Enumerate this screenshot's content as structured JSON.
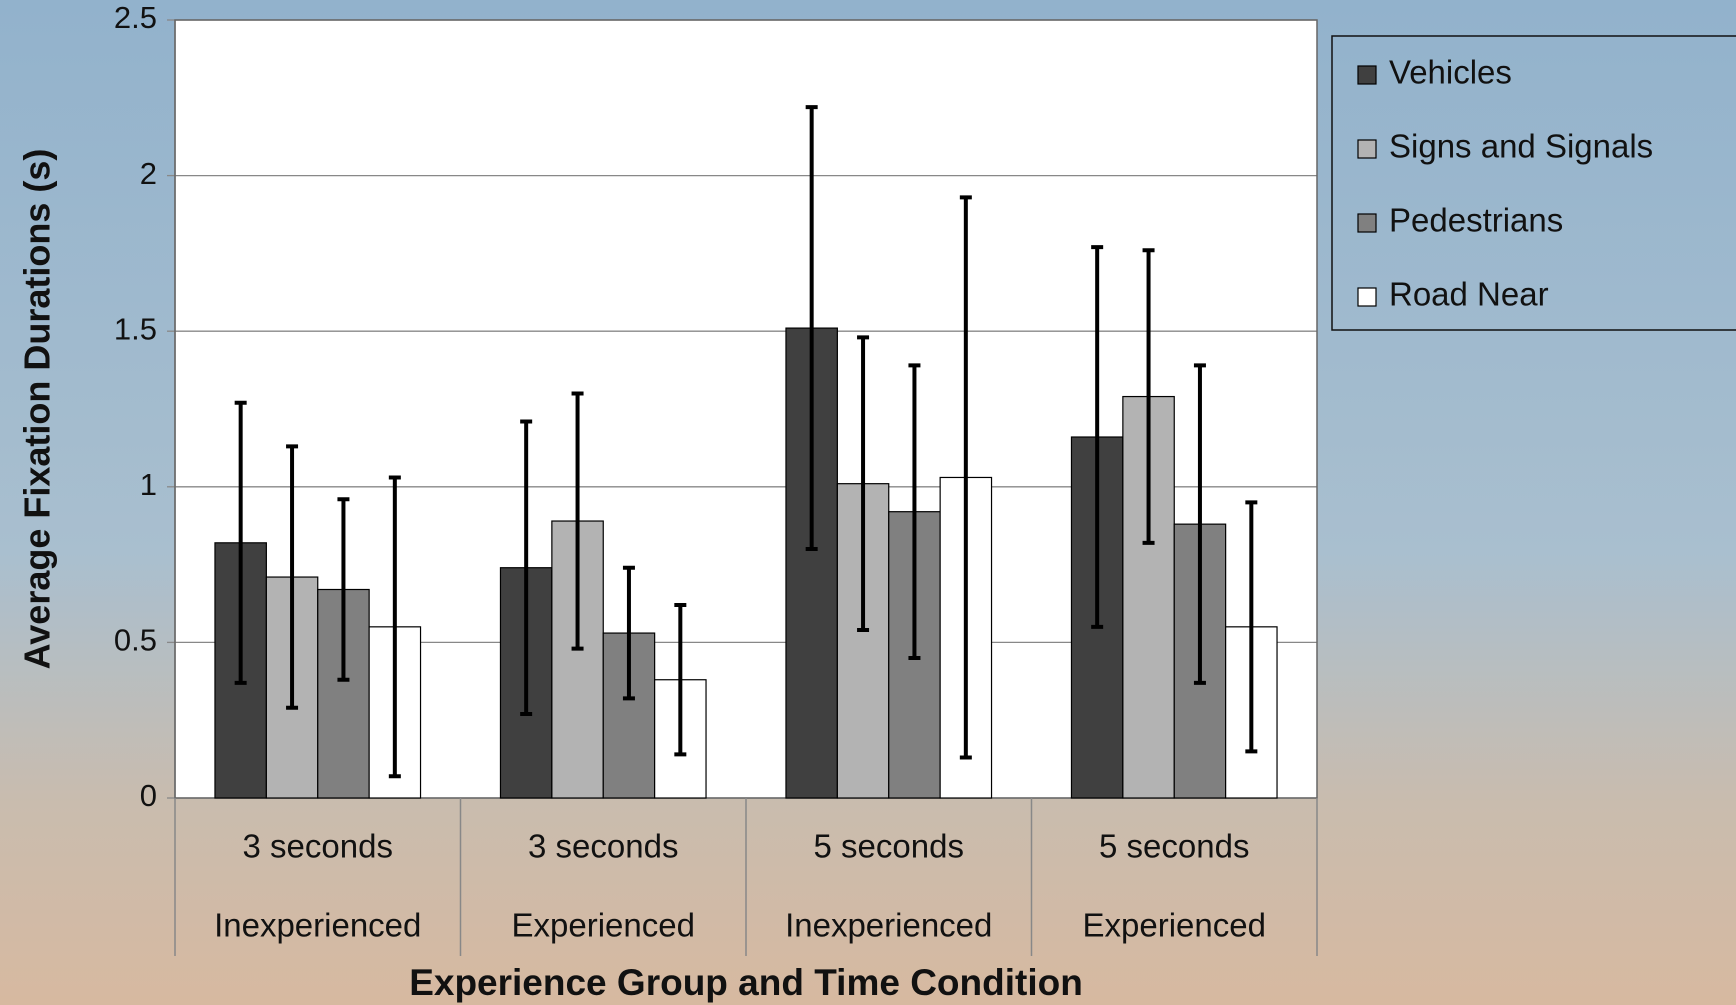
{
  "chart_data": {
    "type": "bar",
    "y_label": "Average Fixation Durations (s)",
    "x_label": "Experience Group and Time Condition",
    "categories": [
      "3 seconds",
      "3 seconds",
      "5 seconds",
      "5 seconds"
    ],
    "category_groups": [
      "Inexperienced",
      "Experienced",
      "Inexperienced",
      "Experienced"
    ],
    "series": [
      {
        "name": "Vehicles",
        "color": "#404040",
        "values": [
          0.82,
          0.74,
          1.51,
          1.16
        ],
        "errors": [
          0.45,
          0.47,
          0.71,
          0.61
        ]
      },
      {
        "name": "Signs and Signals",
        "color": "#b3b3b3",
        "values": [
          0.71,
          0.89,
          1.01,
          1.29
        ],
        "errors": [
          0.42,
          0.41,
          0.47,
          0.47
        ]
      },
      {
        "name": "Pedestrians",
        "color": "#808080",
        "values": [
          0.67,
          0.53,
          0.92,
          0.88
        ],
        "errors": [
          0.29,
          0.21,
          0.47,
          0.51
        ]
      },
      {
        "name": "Road Near",
        "color": "#ffffff",
        "values": [
          0.55,
          0.38,
          1.03,
          0.55
        ],
        "errors": [
          0.48,
          0.24,
          0.9,
          0.4
        ]
      }
    ],
    "ylim": [
      0,
      2.5
    ],
    "yticks": [
      0,
      0.5,
      1,
      1.5,
      2,
      2.5
    ],
    "grid": true,
    "legend": "right"
  }
}
